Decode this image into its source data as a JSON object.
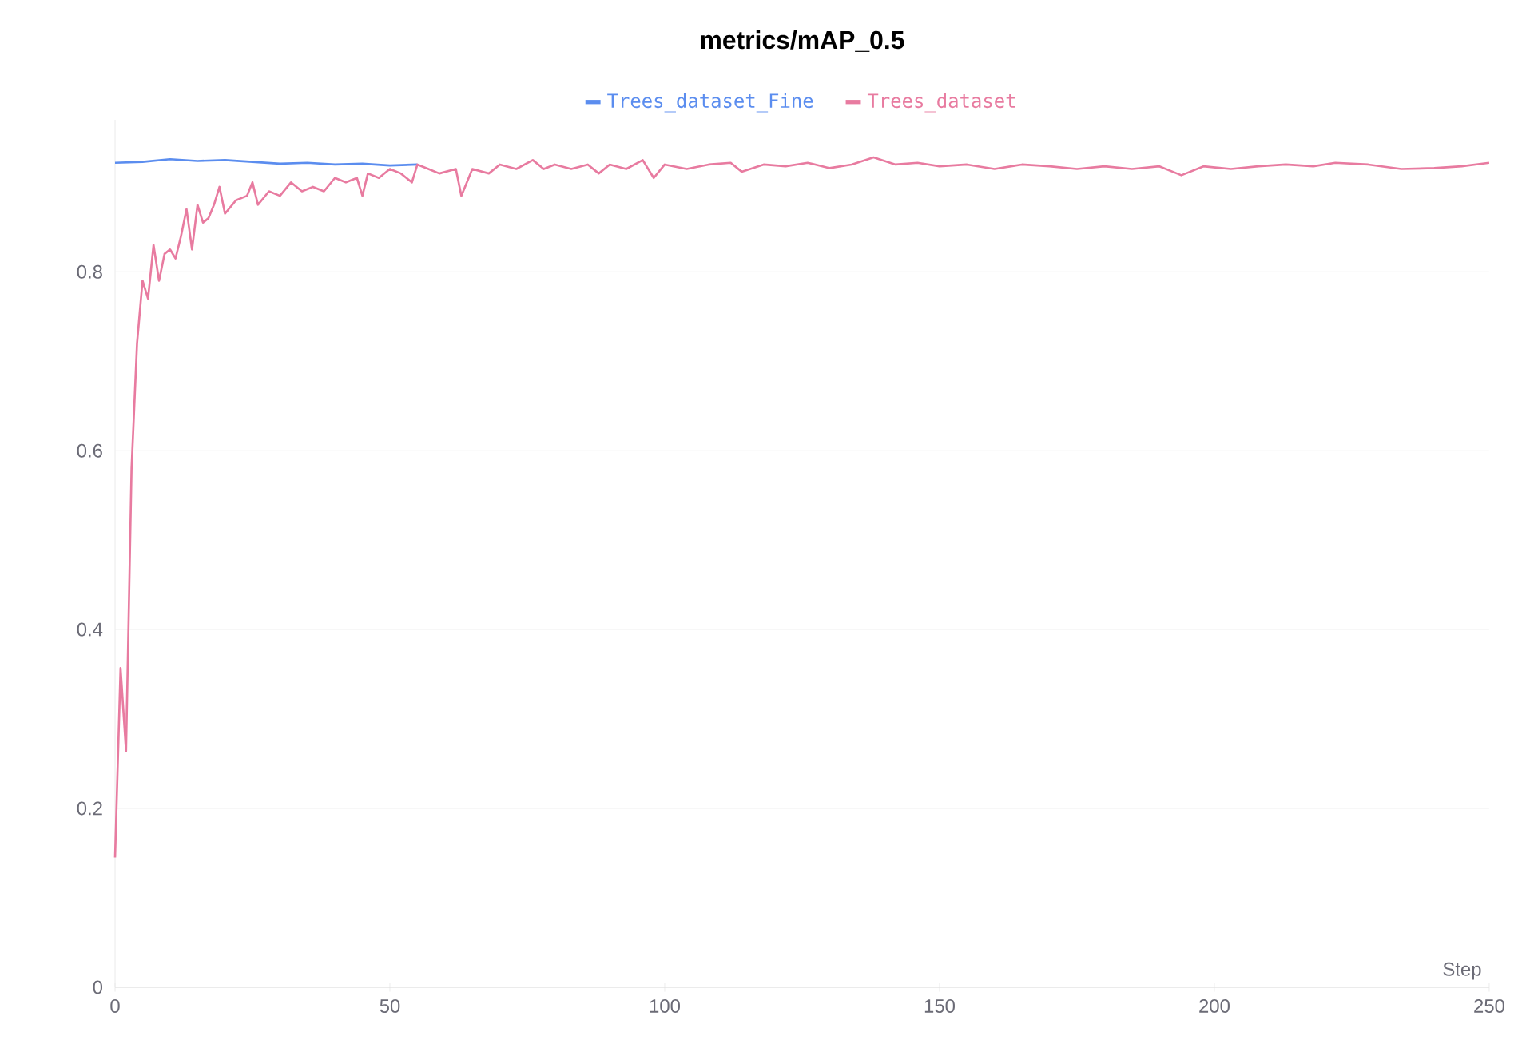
{
  "chart_data": {
    "type": "line",
    "title": "metrics/mAP_0.5",
    "xlabel": "Step",
    "xlim": [
      0,
      250
    ],
    "xticks": [
      0,
      50,
      100,
      150,
      200,
      250
    ],
    "ylim": [
      0,
      0.97
    ],
    "yticks": [
      0,
      0.2,
      0.4,
      0.6,
      0.8
    ],
    "grid": "y",
    "legend": "top",
    "marker": "none",
    "line_style": "solid",
    "series": [
      {
        "name": "Trees_dataset_Fine",
        "color": "#5b8def",
        "x": [
          0,
          5,
          10,
          15,
          20,
          25,
          30,
          35,
          40,
          45,
          50,
          55
        ],
        "values": [
          0.922,
          0.923,
          0.926,
          0.924,
          0.925,
          0.923,
          0.921,
          0.922,
          0.92,
          0.921,
          0.919,
          0.92
        ]
      },
      {
        "name": "Trees_dataset",
        "color": "#e87ba0",
        "x": [
          0,
          1,
          2,
          3,
          4,
          5,
          6,
          7,
          8,
          9,
          10,
          11,
          12,
          13,
          14,
          15,
          16,
          17,
          18,
          19,
          20,
          22,
          24,
          25,
          26,
          28,
          30,
          32,
          34,
          36,
          38,
          40,
          42,
          44,
          45,
          46,
          48,
          50,
          52,
          54,
          55,
          57,
          59,
          62,
          63,
          65,
          68,
          70,
          73,
          76,
          78,
          80,
          83,
          86,
          88,
          90,
          93,
          96,
          98,
          100,
          104,
          108,
          112,
          114,
          118,
          122,
          126,
          130,
          134,
          138,
          142,
          146,
          150,
          155,
          160,
          165,
          170,
          175,
          180,
          185,
          190,
          194,
          198,
          203,
          208,
          213,
          218,
          222,
          228,
          234,
          240,
          245,
          250
        ],
        "values": [
          0.145,
          0.357,
          0.264,
          0.58,
          0.72,
          0.79,
          0.77,
          0.83,
          0.79,
          0.82,
          0.825,
          0.815,
          0.84,
          0.87,
          0.825,
          0.875,
          0.855,
          0.86,
          0.875,
          0.895,
          0.865,
          0.88,
          0.885,
          0.9,
          0.875,
          0.89,
          0.885,
          0.9,
          0.89,
          0.895,
          0.89,
          0.905,
          0.9,
          0.905,
          0.885,
          0.91,
          0.905,
          0.915,
          0.91,
          0.9,
          0.92,
          0.915,
          0.91,
          0.915,
          0.885,
          0.915,
          0.91,
          0.92,
          0.915,
          0.925,
          0.915,
          0.92,
          0.915,
          0.92,
          0.91,
          0.92,
          0.915,
          0.925,
          0.905,
          0.92,
          0.915,
          0.92,
          0.922,
          0.912,
          0.92,
          0.918,
          0.922,
          0.916,
          0.92,
          0.928,
          0.92,
          0.922,
          0.918,
          0.92,
          0.915,
          0.92,
          0.918,
          0.915,
          0.918,
          0.915,
          0.918,
          0.908,
          0.918,
          0.915,
          0.918,
          0.92,
          0.918,
          0.922,
          0.92,
          0.915,
          0.916,
          0.918,
          0.922
        ]
      }
    ]
  }
}
